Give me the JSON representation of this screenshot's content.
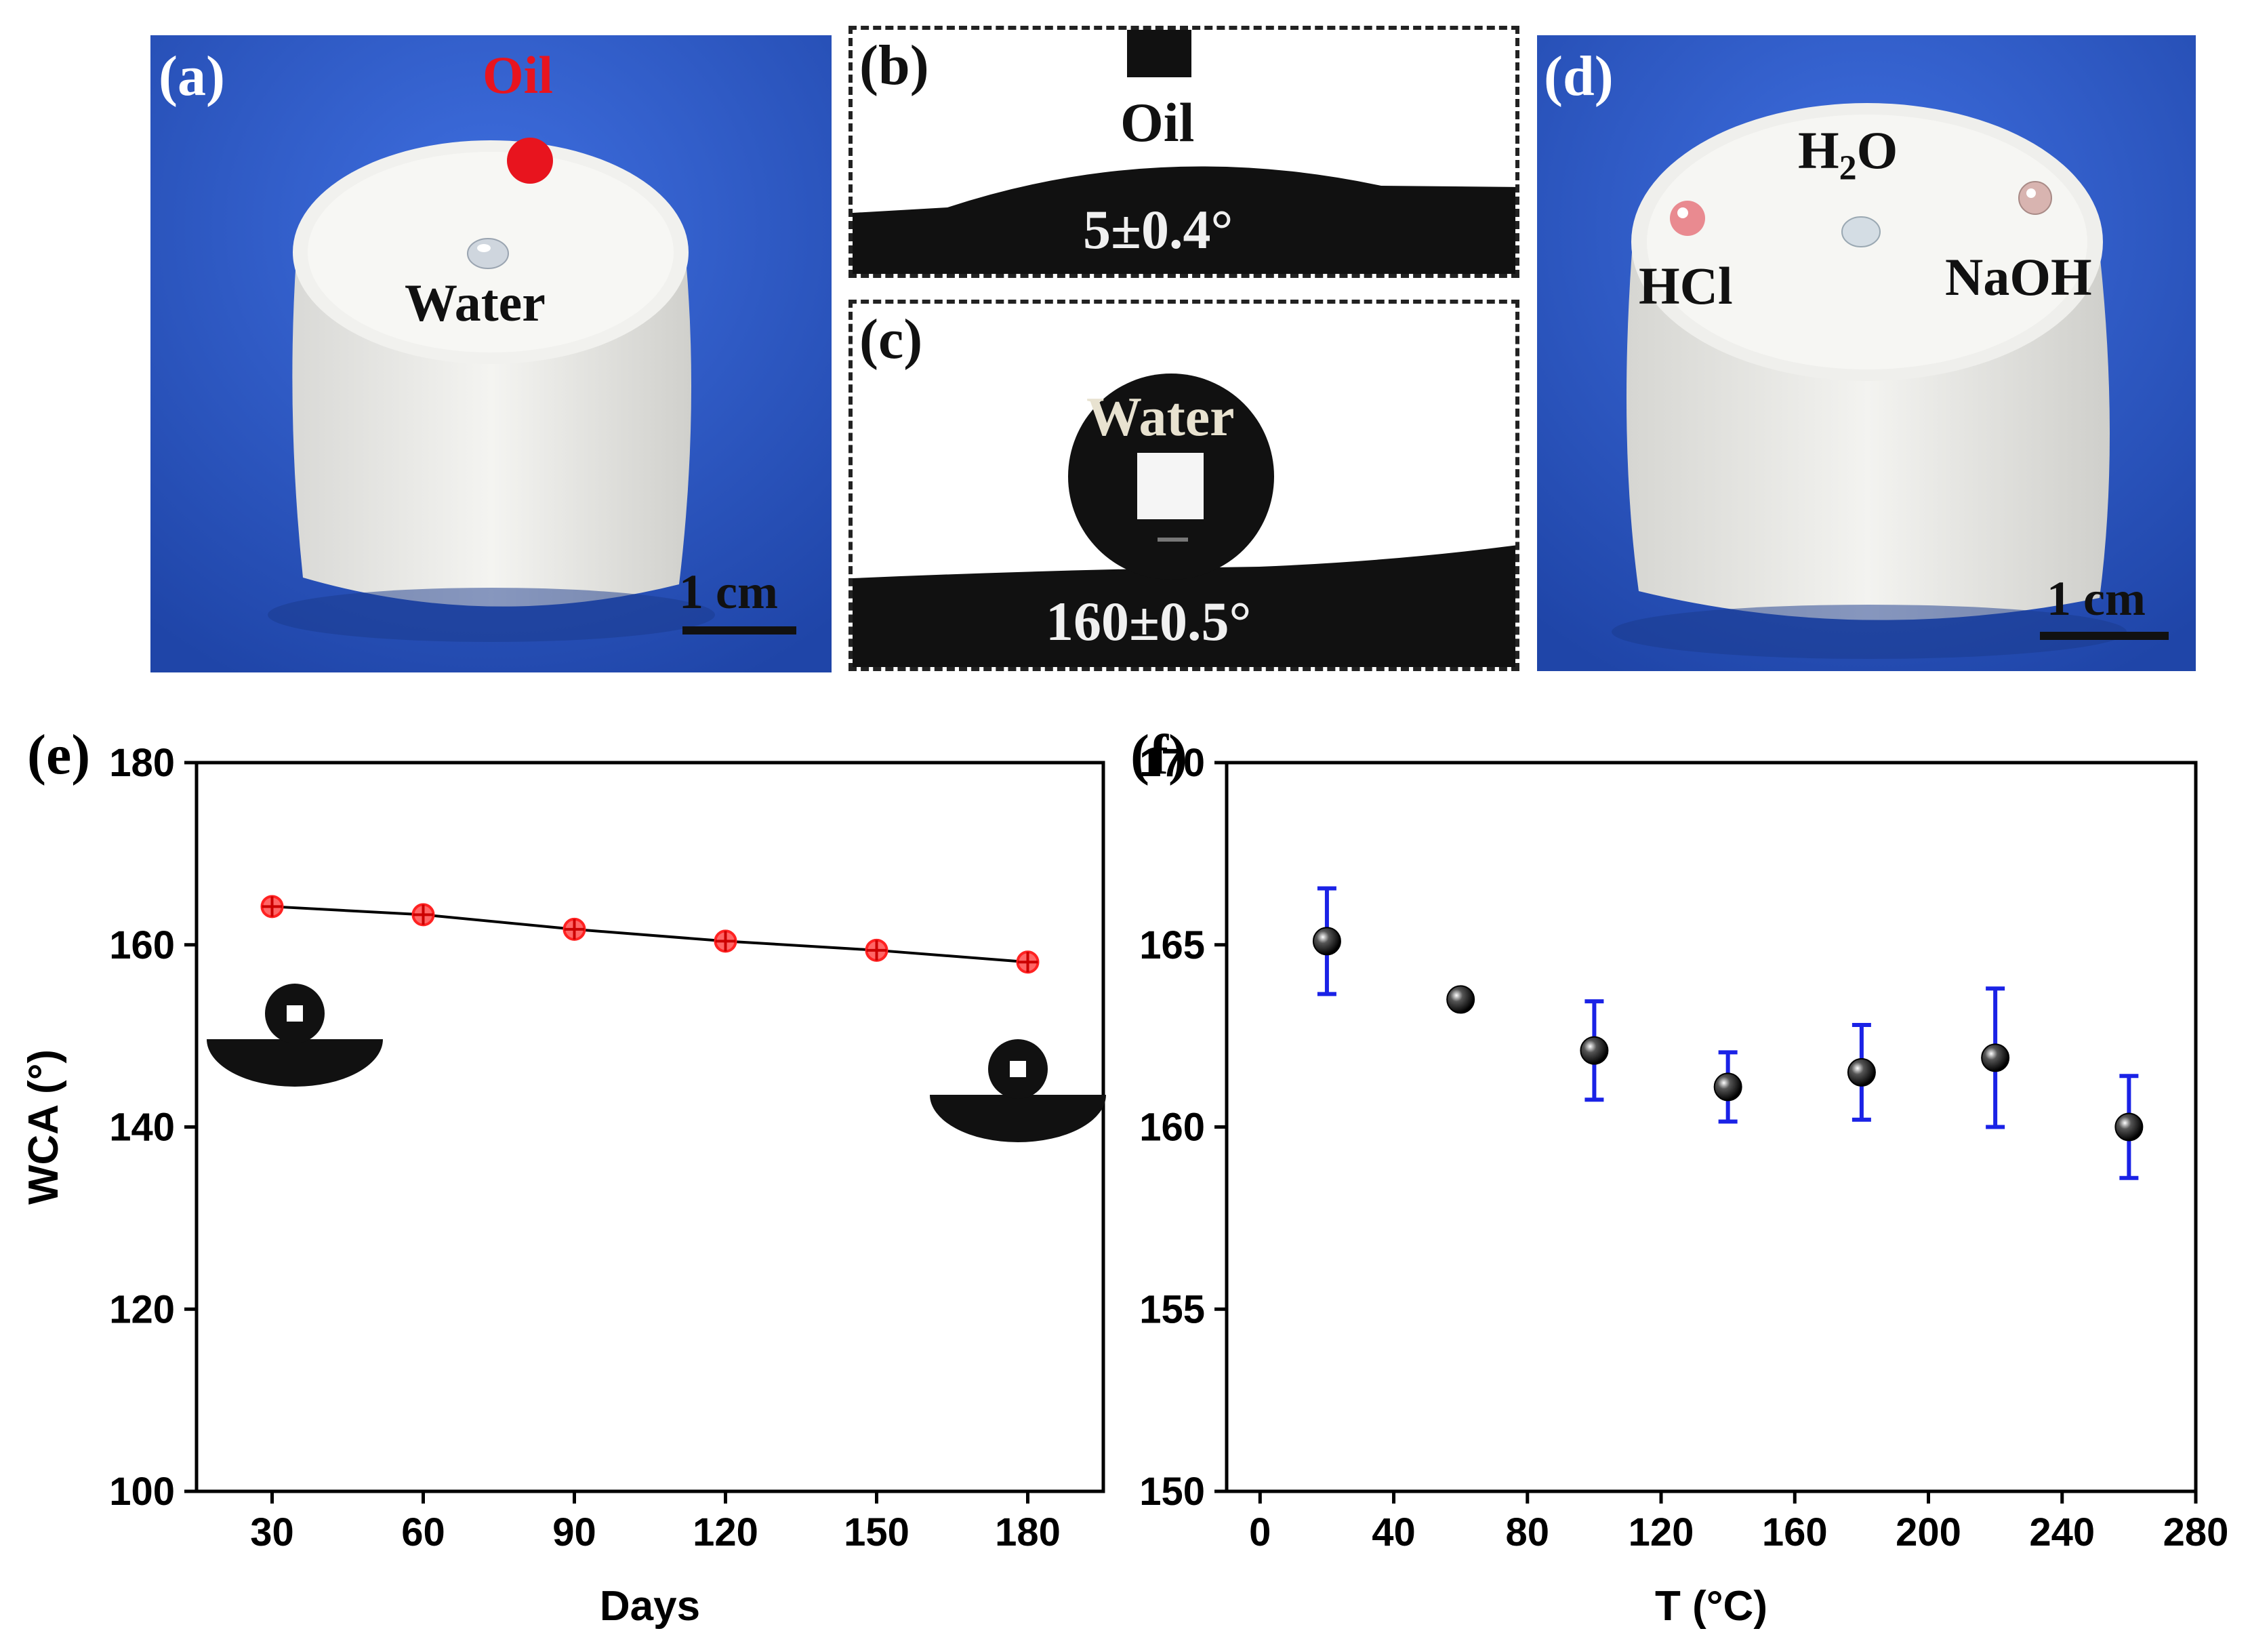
{
  "panel_a": {
    "label": "(a)",
    "oil_label": "Oil",
    "water_label": "Water",
    "scale_label": "1 cm",
    "colors": {
      "background": "#2a56c6",
      "oil": "#e8141e"
    }
  },
  "panel_b": {
    "label": "(b)",
    "liquid_label": "Oil",
    "angle_label": "5±0.4°"
  },
  "panel_c": {
    "label": "(c)",
    "liquid_label": "Water",
    "angle_label": "160±0.5°"
  },
  "panel_d": {
    "label": "(d)",
    "h2o_label": "H",
    "h2o_sub": "2",
    "h2o_suffix": "O",
    "hcl_label": "HCl",
    "naoh_label": "NaOH",
    "scale_label": "1 cm"
  },
  "chart_data": [
    {
      "panel_label": "(e)",
      "type": "line",
      "x": [
        30,
        60,
        90,
        120,
        150,
        180
      ],
      "series": [
        {
          "name": "WCA",
          "values": [
            164.2,
            163.3,
            161.7,
            160.4,
            159.4,
            158.1
          ],
          "color": "#ff2222"
        }
      ],
      "xlabel": "Days",
      "ylabel": "WCA (°)",
      "xlim": [
        15,
        195
      ],
      "ylim": [
        100,
        180
      ],
      "xticks": [
        30,
        60,
        90,
        120,
        150,
        180
      ],
      "yticks": [
        100,
        120,
        140,
        160,
        180
      ],
      "grid": false
    },
    {
      "panel_label": "(f)",
      "type": "scatter",
      "x": [
        20,
        60,
        100,
        140,
        180,
        220,
        260
      ],
      "series": [
        {
          "name": "WCA",
          "values": [
            165.1,
            163.5,
            162.1,
            161.1,
            161.5,
            161.9,
            160.0
          ],
          "errors": [
            1.45,
            0.2,
            1.35,
            0.95,
            1.3,
            1.9,
            1.4
          ],
          "error_color": "#1a22e6"
        }
      ],
      "xlabel": "T (°C)",
      "ylabel": "WCA (°)",
      "xlim": [
        -10,
        280
      ],
      "ylim": [
        150,
        170
      ],
      "xticks": [
        0,
        40,
        80,
        120,
        160,
        200,
        240,
        280
      ],
      "yticks": [
        150,
        155,
        160,
        165,
        170
      ],
      "grid": false
    }
  ]
}
